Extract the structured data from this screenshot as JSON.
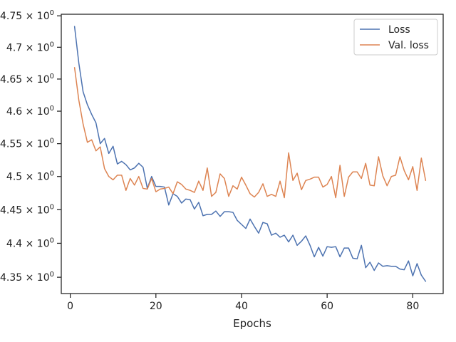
{
  "chart_data": {
    "type": "line",
    "title": "",
    "xlabel": "Epochs",
    "ylabel": "",
    "y_scale": "log",
    "xlim": [
      -2.1,
      87.1
    ],
    "ylim": [
      4.3262,
      4.7525
    ],
    "grid": false,
    "legend_position": "top-right",
    "x_ticks": [
      0,
      20,
      40,
      60,
      80
    ],
    "x_tick_labels": [
      "0",
      "20",
      "40",
      "60",
      "80"
    ],
    "y_ticks": [
      4.35,
      4.4,
      4.45,
      4.5,
      4.55,
      4.6,
      4.65,
      4.7,
      4.75
    ],
    "y_tick_labels": [
      "4.35",
      "4.4",
      "4.45",
      "4.5",
      "4.55",
      "4.6",
      "4.65",
      "4.7",
      "4.75"
    ],
    "y_tick_power_base": "10",
    "y_tick_power_exp": "0",
    "y_tick_times": "×",
    "x": [
      1,
      2,
      3,
      4,
      5,
      6,
      7,
      8,
      9,
      10,
      11,
      12,
      13,
      14,
      15,
      16,
      17,
      18,
      19,
      20,
      21,
      22,
      23,
      24,
      25,
      26,
      27,
      28,
      29,
      30,
      31,
      32,
      33,
      34,
      35,
      36,
      37,
      38,
      39,
      40,
      41,
      42,
      43,
      44,
      45,
      46,
      47,
      48,
      49,
      50,
      51,
      52,
      53,
      54,
      55,
      56,
      57,
      58,
      59,
      60,
      61,
      62,
      63,
      64,
      65,
      66,
      67,
      68,
      69,
      70,
      71,
      72,
      73,
      74,
      75,
      76,
      77,
      78,
      79,
      80,
      81,
      82,
      83
    ],
    "series": [
      {
        "name": "Loss",
        "color": "#4c72b0",
        "values": [
          4.733,
          4.675,
          4.63,
          4.61,
          4.595,
          4.582,
          4.55,
          4.558,
          4.535,
          4.546,
          4.519,
          4.523,
          4.518,
          4.51,
          4.513,
          4.52,
          4.514,
          4.482,
          4.5,
          4.485,
          4.485,
          4.484,
          4.457,
          4.474,
          4.47,
          4.46,
          4.466,
          4.465,
          4.451,
          4.461,
          4.441,
          4.443,
          4.443,
          4.448,
          4.44,
          4.447,
          4.447,
          4.446,
          4.434,
          4.428,
          4.422,
          4.436,
          4.425,
          4.415,
          4.431,
          4.429,
          4.412,
          4.415,
          4.409,
          4.412,
          4.402,
          4.412,
          4.397,
          4.403,
          4.411,
          4.397,
          4.38,
          4.394,
          4.381,
          4.395,
          4.394,
          4.395,
          4.38,
          4.393,
          4.393,
          4.378,
          4.377,
          4.397,
          4.364,
          4.372,
          4.36,
          4.371,
          4.366,
          4.367,
          4.366,
          4.366,
          4.362,
          4.361,
          4.374,
          4.352,
          4.37,
          4.353,
          4.344
        ]
      },
      {
        "name": "Val. loss",
        "color": "#dd8452",
        "values": [
          4.668,
          4.617,
          4.58,
          4.552,
          4.556,
          4.539,
          4.545,
          4.512,
          4.5,
          4.495,
          4.502,
          4.502,
          4.479,
          4.497,
          4.487,
          4.5,
          4.482,
          4.481,
          4.497,
          4.477,
          4.481,
          4.482,
          4.484,
          4.474,
          4.492,
          4.488,
          4.481,
          4.479,
          4.476,
          4.493,
          4.479,
          4.513,
          4.47,
          4.476,
          4.504,
          4.497,
          4.47,
          4.486,
          4.481,
          4.499,
          4.487,
          4.474,
          4.469,
          4.476,
          4.489,
          4.47,
          4.473,
          4.47,
          4.493,
          4.468,
          4.536,
          4.494,
          4.505,
          4.48,
          4.494,
          4.496,
          4.499,
          4.499,
          4.484,
          4.488,
          4.5,
          4.468,
          4.517,
          4.47,
          4.499,
          4.507,
          4.507,
          4.497,
          4.52,
          4.487,
          4.486,
          4.53,
          4.501,
          4.486,
          4.5,
          4.502,
          4.53,
          4.509,
          4.495,
          4.515,
          4.479,
          4.528,
          4.494
        ]
      }
    ]
  }
}
